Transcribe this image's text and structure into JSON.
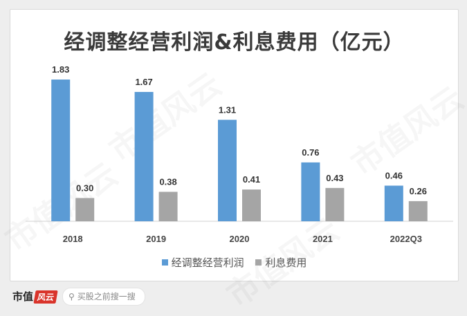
{
  "chart_data": {
    "type": "bar",
    "title": "经调整经营利润&利息费用（亿元）",
    "categories": [
      "2018",
      "2019",
      "2020",
      "2021",
      "2022Q3"
    ],
    "series": [
      {
        "name": "经调整经营利润",
        "color": "#5b9bd5",
        "values": [
          1.83,
          1.67,
          1.31,
          0.76,
          0.46
        ]
      },
      {
        "name": "利息费用",
        "color": "#a5a5a5",
        "values": [
          0.3,
          0.38,
          0.41,
          0.43,
          0.26
        ]
      }
    ],
    "ylim": [
      0,
      2.0
    ],
    "grid": false,
    "legend": "bottom"
  },
  "watermark": "市值风云",
  "footer": {
    "logo_text": "市值",
    "logo_mark": "风云",
    "search_placeholder": "买股之前搜一搜"
  }
}
